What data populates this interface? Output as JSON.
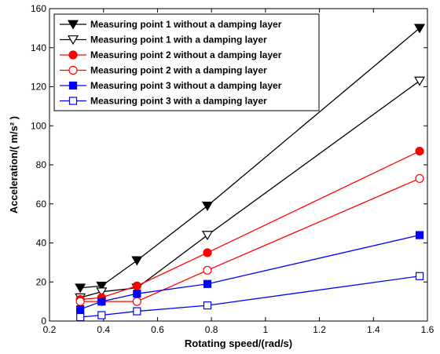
{
  "chart_data": {
    "type": "line",
    "xlabel": "Rotating speed/(rad/s)",
    "ylabel": "Acceleration/( m/s² )",
    "xlim": [
      0.2,
      1.6
    ],
    "ylim": [
      0,
      160
    ],
    "xticks": [
      0.2,
      0.4,
      0.6,
      0.8,
      1.0,
      1.2,
      1.4,
      1.6
    ],
    "xtick_labels": [
      "0.2",
      "0.4",
      "0.6",
      "0.8",
      "1",
      "1.2",
      "1.4",
      "1.6"
    ],
    "yticks": [
      0,
      20,
      40,
      60,
      80,
      100,
      120,
      140,
      160
    ],
    "ytick_labels": [
      "0",
      "20",
      "40",
      "60",
      "80",
      "100",
      "120",
      "140",
      "160"
    ],
    "grid": false,
    "legend_position": "top-left",
    "x": [
      0.314,
      0.393,
      0.524,
      0.785,
      1.571
    ],
    "series": [
      {
        "name": "Measuring point 1 without a damping layer",
        "values": [
          17,
          18,
          31,
          59,
          150
        ],
        "color": "#000000",
        "marker": "triangle-down-filled"
      },
      {
        "name": "Measuring point 1 with a damping layer",
        "values": [
          12,
          15,
          17,
          44,
          123
        ],
        "color": "#000000",
        "marker": "triangle-down-open"
      },
      {
        "name": "Measuring point 2 without a damping layer",
        "values": [
          11,
          12,
          18,
          35,
          87
        ],
        "color": "#ff0000",
        "marker": "circle-filled"
      },
      {
        "name": "Measuring point 2 with a damping layer",
        "values": [
          10,
          10,
          10,
          26,
          73
        ],
        "color": "#ff0000",
        "marker": "circle-open"
      },
      {
        "name": "Measuring point 3 without a damping layer",
        "values": [
          6,
          10,
          14,
          19,
          44
        ],
        "color": "#0000ff",
        "marker": "square-filled"
      },
      {
        "name": "Measuring point 3 with a damping layer",
        "values": [
          2,
          3,
          5,
          8,
          23
        ],
        "color": "#0000ff",
        "marker": "square-open"
      }
    ]
  }
}
